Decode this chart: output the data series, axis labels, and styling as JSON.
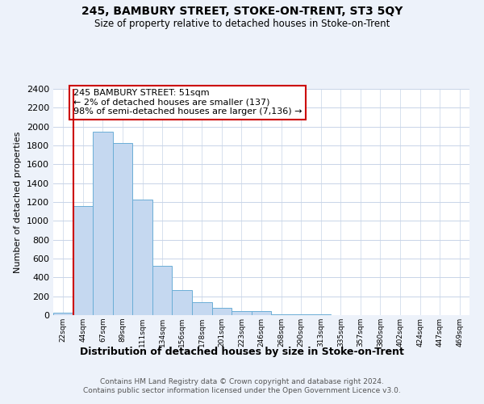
{
  "title": "245, BAMBURY STREET, STOKE-ON-TRENT, ST3 5QY",
  "subtitle": "Size of property relative to detached houses in Stoke-on-Trent",
  "xlabel": "Distribution of detached houses by size in Stoke-on-Trent",
  "ylabel": "Number of detached properties",
  "bar_labels": [
    "22sqm",
    "44sqm",
    "67sqm",
    "89sqm",
    "111sqm",
    "134sqm",
    "156sqm",
    "178sqm",
    "201sqm",
    "223sqm",
    "246sqm",
    "268sqm",
    "290sqm",
    "313sqm",
    "335sqm",
    "357sqm",
    "380sqm",
    "402sqm",
    "424sqm",
    "447sqm",
    "469sqm"
  ],
  "bar_values": [
    25,
    1160,
    1950,
    1830,
    1225,
    525,
    265,
    140,
    75,
    45,
    40,
    5,
    12,
    5,
    2,
    2,
    1,
    1,
    1,
    1,
    1
  ],
  "bar_color": "#c5d8f0",
  "bar_edge_color": "#6baed6",
  "vline_color": "#cc0000",
  "annotation_title": "245 BAMBURY STREET: 51sqm",
  "annotation_line1": "← 2% of detached houses are smaller (137)",
  "annotation_line2": "98% of semi-detached houses are larger (7,136) →",
  "annotation_box_edge": "#cc0000",
  "ylim": [
    0,
    2400
  ],
  "yticks": [
    0,
    200,
    400,
    600,
    800,
    1000,
    1200,
    1400,
    1600,
    1800,
    2000,
    2200,
    2400
  ],
  "footer_line1": "Contains HM Land Registry data © Crown copyright and database right 2024.",
  "footer_line2": "Contains public sector information licensed under the Open Government Licence v3.0.",
  "bg_color": "#edf2fa",
  "plot_bg_color": "#ffffff",
  "grid_color": "#c8d4e8"
}
